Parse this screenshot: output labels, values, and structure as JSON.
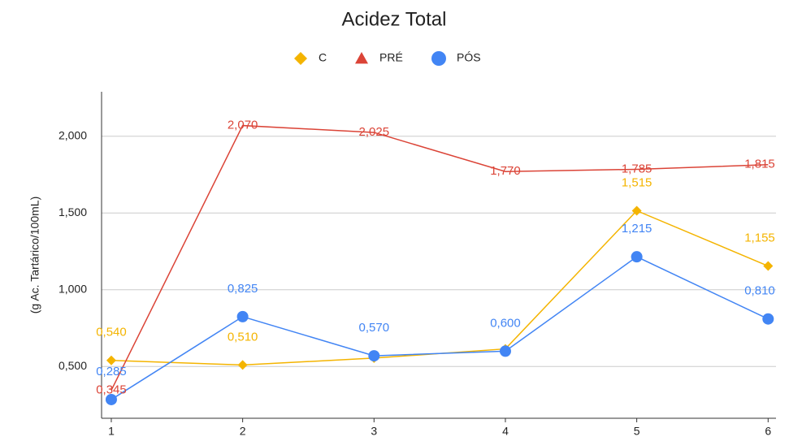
{
  "chart_data": {
    "type": "line",
    "title": "Acidez Total",
    "ylabel": "(g Ac. Tartárico/100mL)",
    "x": [
      1,
      2,
      3,
      4,
      5,
      6
    ],
    "xlim": [
      0.926,
      6.06
    ],
    "xticks": [
      1,
      2,
      3,
      4,
      5,
      6
    ],
    "ylim": [
      0.163,
      2.29
    ],
    "yticks": [
      {
        "value": 0.5,
        "label": "0,500"
      },
      {
        "value": 1,
        "label": "1,000"
      },
      {
        "value": 1.5,
        "label": "1,500"
      },
      {
        "value": 2,
        "label": "2,000"
      }
    ],
    "grid": true,
    "legend": "top",
    "series": [
      {
        "name": "C",
        "color": "#f4b400",
        "marker": "diamond",
        "show_markers": true,
        "values": [
          0.54,
          0.51,
          0.555,
          0.615,
          1.515,
          1.155
        ],
        "value_labels": [
          "0,540",
          "0,510",
          null,
          null,
          "1,515",
          "1,155"
        ]
      },
      {
        "name": "PRÉ",
        "color": "#db4437",
        "marker": "triangle",
        "show_markers": false,
        "values": [
          0.345,
          2.07,
          2.025,
          1.77,
          1.785,
          1.815
        ],
        "value_labels": [
          "0,345",
          "2,070",
          "2,025",
          "1,770",
          "1,785",
          "1,815"
        ]
      },
      {
        "name": "PÓS",
        "color": "#4285f4",
        "marker": "circle",
        "show_markers": true,
        "values": [
          0.285,
          0.825,
          0.57,
          0.6,
          1.215,
          0.81
        ],
        "value_labels": [
          "0,285",
          "0,825",
          "0,570",
          "0,600",
          "1,215",
          "0,810"
        ]
      }
    ]
  }
}
